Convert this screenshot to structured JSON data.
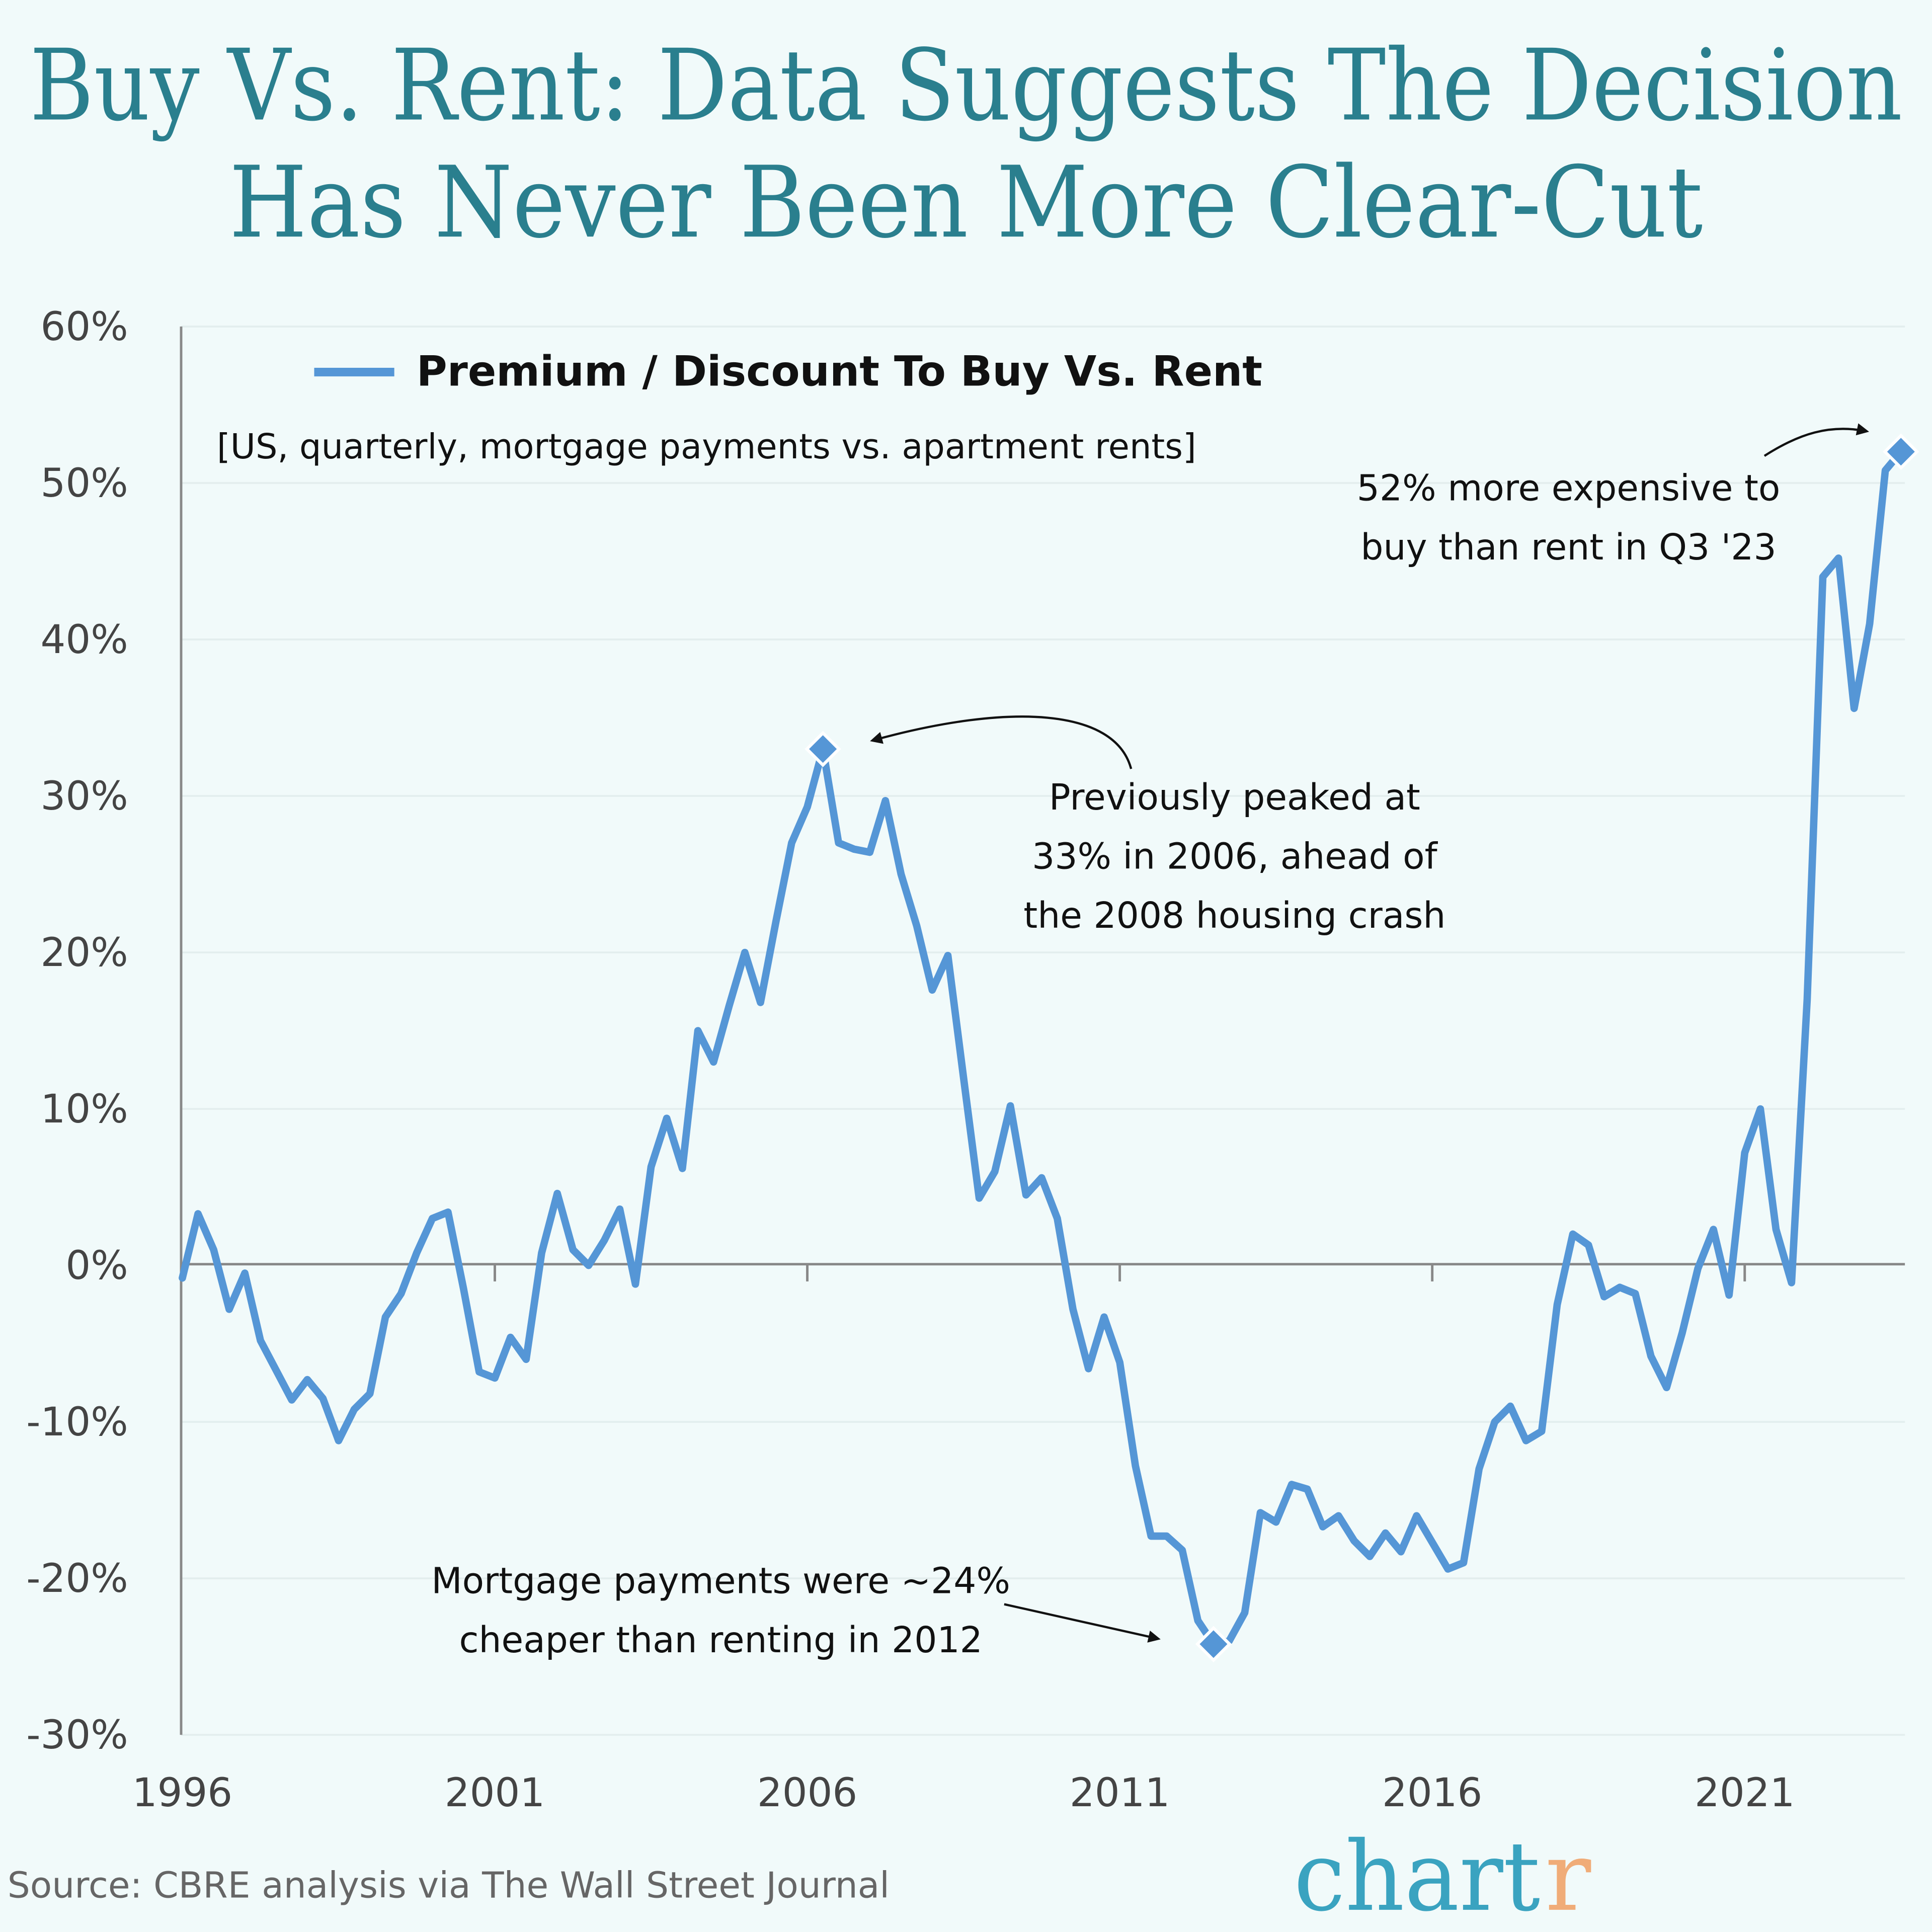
{
  "title_line1": "Buy Vs. Rent: Data Suggests The Decision",
  "title_line2": "Has Never Been More Clear-Cut",
  "source": "Source: CBRE analysis via The Wall Street Journal",
  "logo": {
    "main": "chart",
    "accent": "r",
    "main_color": "#3aa3c0",
    "accent_color": "#f0ac78"
  },
  "colors": {
    "line": "#5596d6",
    "title": "#2a7f8e",
    "background": "#f1fafa"
  },
  "chart_data": {
    "type": "line",
    "title": "Buy Vs. Rent: Data Suggests The Decision Has Never Been More Clear-Cut",
    "subtitle": "[US, quarterly, mortgage payments vs. apartment rents]",
    "legend": {
      "position": "top-left",
      "entries": [
        "Premium / Discount To Buy Vs. Rent"
      ]
    },
    "x_start": "1996 Q1",
    "frequency": "quarterly",
    "x_ticks": [
      "1996",
      "2001",
      "2006",
      "2011",
      "2016",
      "2021"
    ],
    "y_ticks": [
      "60%",
      "50%",
      "40%",
      "30%",
      "20%",
      "10%",
      "0%",
      "-10%",
      "-20%",
      "-30%"
    ],
    "ylim": [
      -30,
      60
    ],
    "grid": true,
    "series": [
      {
        "name": "Premium / Discount To Buy Vs. Rent",
        "values": [
          -0.8,
          3.3,
          1,
          -2.8,
          -0.5,
          -4.8,
          -6.7,
          -8.6,
          -7.3,
          -8.5,
          -11.2,
          -9.2,
          -8.2,
          -3.3,
          -1.8,
          0.8,
          3,
          3.4,
          -1.5,
          -6.8,
          -7.2,
          -4.6,
          -6,
          0.8,
          4.6,
          1,
          0,
          1.6,
          3.6,
          -1.2,
          6.3,
          9.4,
          6.2,
          15,
          13,
          16.6,
          20,
          16.8,
          22,
          27,
          29.3,
          33,
          27,
          26.6,
          26.4,
          29.7,
          25,
          21.7,
          17.6,
          19.8,
          12,
          4.3,
          6,
          10.2,
          4.5,
          5.6,
          3,
          -2.8,
          -6.6,
          -3.3,
          -6.2,
          -12.8,
          -17.3,
          -17.3,
          -18.2,
          -22.7,
          -24.2,
          -24,
          -22.2,
          -15.8,
          -16.4,
          -14,
          -14.3,
          -16.7,
          -16,
          -17.6,
          -18.6,
          -17.1,
          -18.3,
          -16,
          -17.7,
          -19.4,
          -19,
          -13,
          -10,
          -9,
          -11.2,
          -10.6,
          -2.5,
          2,
          1.3,
          -2,
          -1.4,
          -1.8,
          -5.8,
          -7.8,
          -4.3,
          -0.2,
          2.3,
          -1.9,
          7.2,
          10,
          2.3,
          -1.1,
          17,
          44,
          45.2,
          35.6,
          41,
          50.8,
          52
        ]
      }
    ],
    "highlights": [
      {
        "label": "2006 peak",
        "value": 33
      },
      {
        "label": "2012 low",
        "value": -24.2
      },
      {
        "label": "Q3 2023",
        "value": 52
      }
    ],
    "annotations": {
      "peak": [
        "Previously peaked at",
        "33% in 2006, ahead of",
        "the 2008 housing crash"
      ],
      "low": [
        "Mortgage payments were ~24%",
        "cheaper than renting in 2012"
      ],
      "latest": [
        "52% more expensive to",
        "buy than rent in Q3 '23"
      ]
    }
  }
}
